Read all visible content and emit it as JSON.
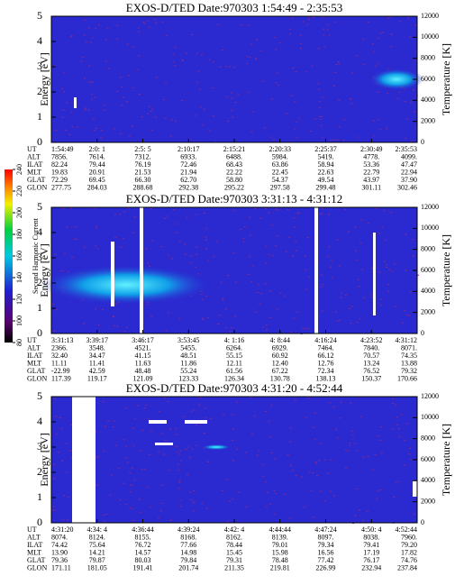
{
  "colorbar": {
    "label": "Second Harmonic Current",
    "lim": [
      80,
      240
    ],
    "ticks": [
      80,
      100,
      120,
      140,
      160,
      180,
      200,
      220,
      240
    ]
  },
  "chart_data": [
    {
      "type": "spectrogram",
      "title": "EXOS-D/TED   Date:970303  1:54:49 - 2:35:53",
      "ylabel": "Energy [eV]",
      "y2label": "Temperature [K]",
      "ylim": [
        0,
        5
      ],
      "yticks": [
        0,
        1,
        2,
        3,
        4,
        5
      ],
      "y2lim": [
        0,
        12000
      ],
      "y2ticks": [
        0,
        2000,
        4000,
        6000,
        8000,
        10000,
        12000
      ],
      "row_labels": [
        "UT",
        "ALT",
        "ILAT",
        "MLT",
        "GLAT",
        "GLON"
      ],
      "rows": [
        [
          "1:54:49",
          "2:0: 1",
          "2:5: 5",
          "2:10:17",
          "2:15:21",
          "2:20:33",
          "2:25:37",
          "2:30:49",
          "2:35:53"
        ],
        [
          "7856.",
          "7614.",
          "7312.",
          "6933.",
          "6488.",
          "5984.",
          "5419.",
          "4778.",
          "4099."
        ],
        [
          "82.24",
          "79.44",
          "76.19",
          "72.46",
          "68.43",
          "63.86",
          "58.94",
          "53.36",
          "47.47"
        ],
        [
          "19.83",
          "20.91",
          "21.53",
          "21.94",
          "22.22",
          "22.45",
          "22.63",
          "22.79",
          "22.94"
        ],
        [
          "72.29",
          "69.45",
          "66.30",
          "62.70",
          "58.80",
          "54.37",
          "49.54",
          "43.97",
          "37.90"
        ],
        [
          "277.75",
          "284.03",
          "288.68",
          "292.38",
          "295.22",
          "297.58",
          "299.48",
          "301.11",
          "302.46"
        ]
      ]
    },
    {
      "type": "spectrogram",
      "title": "EXOS-D/TED   Date:970303  3:31:13 - 4:31:12",
      "ylabel": "Energy [eV]",
      "y2label": "Temperature [K]",
      "ylim": [
        0,
        5
      ],
      "yticks": [
        0,
        1,
        2,
        3,
        4,
        5
      ],
      "y2lim": [
        0,
        12000
      ],
      "y2ticks": [
        0,
        2000,
        4000,
        6000,
        8000,
        10000,
        12000
      ],
      "row_labels": [
        "UT",
        "ALT",
        "ILAT",
        "MLT",
        "GLAT",
        "GLON"
      ],
      "rows": [
        [
          "3:31:13",
          "3:39:17",
          "3:46:17",
          "3:53:45",
          "4: 1:16",
          "4: 8:44",
          "4:16:24",
          "4:23:52",
          "4:31:12"
        ],
        [
          "2366.",
          "3548.",
          "4521.",
          "5455.",
          "6264.",
          "6929.",
          "7464.",
          "7840.",
          "8071."
        ],
        [
          "32.40",
          "34.47",
          "41.15",
          "48.51",
          "55.15",
          "60.92",
          "66.12",
          "70.57",
          "74.35"
        ],
        [
          "11.11",
          "11.41",
          "11.63",
          "11.86",
          "12.11",
          "12.40",
          "12.76",
          "13.24",
          "13.88"
        ],
        [
          "-22.99",
          "42.59",
          "48.48",
          "55.24",
          "61.56",
          "67.22",
          "72.34",
          "76.52",
          "79.32"
        ],
        [
          "117.39",
          "119.17",
          "121.09",
          "123.33",
          "126.34",
          "130.78",
          "138.13",
          "150.37",
          "170.66"
        ]
      ]
    },
    {
      "type": "spectrogram",
      "title": "EXOS-D/TED   Date:970303  4:31:20 - 4:52:44",
      "ylabel": "Energy [eV]",
      "y2label": "Temperature [K]",
      "ylim": [
        0,
        5
      ],
      "yticks": [
        0,
        1,
        2,
        3,
        4,
        5
      ],
      "y2lim": [
        0,
        12000
      ],
      "y2ticks": [
        0,
        2000,
        4000,
        6000,
        8000,
        10000,
        12000
      ],
      "row_labels": [
        "UT",
        "ALT",
        "ILAT",
        "MLT",
        "GLAT",
        "GLON"
      ],
      "rows": [
        [
          "4:31:20",
          "4:34: 4",
          "4:36:44",
          "4:39:24",
          "4:42: 4",
          "4:44:44",
          "4:47:24",
          "4:50: 4",
          "4:52:44"
        ],
        [
          "8074.",
          "8124.",
          "8155.",
          "8168.",
          "8162.",
          "8139.",
          "8097.",
          "8038.",
          "7960."
        ],
        [
          "74.42",
          "75.64",
          "76.72",
          "77.66",
          "78.44",
          "79.01",
          "79.34",
          "79.41",
          "79.20"
        ],
        [
          "13.90",
          "14.21",
          "14.57",
          "14.98",
          "15.45",
          "15.98",
          "16.56",
          "17.19",
          "17.82"
        ],
        [
          "79.36",
          "79.87",
          "80.03",
          "79.84",
          "79.31",
          "78.48",
          "77.42",
          "76.17",
          "74.76"
        ],
        [
          "171.11",
          "181.05",
          "191.41",
          "201.74",
          "211.35",
          "219.81",
          "226.99",
          "232.94",
          "237.84"
        ]
      ]
    }
  ]
}
